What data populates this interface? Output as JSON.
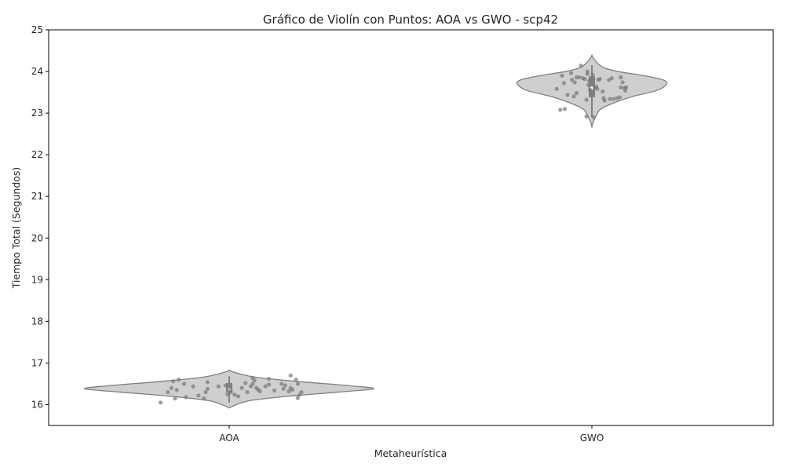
{
  "chart_data": {
    "type": "violin",
    "title": "Gráfico de Violín con Puntos: AOA vs GWO - scp42",
    "xlabel": "Metaheurística",
    "ylabel": "Tiempo Total (Segundos)",
    "categories": [
      "AOA",
      "GWO"
    ],
    "ylim": [
      15.5,
      25
    ],
    "yticks": [
      16,
      17,
      18,
      19,
      20,
      21,
      22,
      23,
      24,
      25
    ],
    "grid": false,
    "legend": "none",
    "colors": {
      "violin_fill": "#cfcfcf",
      "violin_edge": "#808080",
      "point": "#7a7a7a",
      "box": "#808080"
    },
    "violins": [
      {
        "category": "AOA",
        "min": 15.92,
        "max": 16.82,
        "median": 16.38,
        "q1": 16.3,
        "q3": 16.52,
        "whisker_low": 16.05,
        "whisker_high": 16.68,
        "profile": [
          [
            15.92,
            0.0
          ],
          [
            16.0,
            0.05
          ],
          [
            16.1,
            0.15
          ],
          [
            16.2,
            0.4
          ],
          [
            16.3,
            0.75
          ],
          [
            16.38,
            1.0
          ],
          [
            16.45,
            0.85
          ],
          [
            16.55,
            0.5
          ],
          [
            16.65,
            0.2
          ],
          [
            16.75,
            0.06
          ],
          [
            16.82,
            0.0
          ]
        ],
        "points": [
          [
            -0.38,
            16.05
          ],
          [
            -0.34,
            16.3
          ],
          [
            -0.32,
            16.4
          ],
          [
            -0.31,
            16.56
          ],
          [
            -0.3,
            16.15
          ],
          [
            -0.29,
            16.35
          ],
          [
            -0.28,
            16.6
          ],
          [
            -0.25,
            16.5
          ],
          [
            -0.24,
            16.18
          ],
          [
            -0.2,
            16.44
          ],
          [
            -0.17,
            16.22
          ],
          [
            -0.14,
            16.15
          ],
          [
            -0.13,
            16.3
          ],
          [
            -0.12,
            16.54
          ],
          [
            -0.12,
            16.38
          ],
          [
            -0.06,
            16.44
          ],
          [
            -0.02,
            16.46
          ],
          [
            -0.01,
            16.25
          ],
          [
            0.0,
            16.4
          ],
          [
            0.01,
            16.3
          ],
          [
            0.03,
            16.24
          ],
          [
            0.05,
            16.2
          ],
          [
            0.07,
            16.4
          ],
          [
            0.09,
            16.52
          ],
          [
            0.1,
            16.3
          ],
          [
            0.12,
            16.44
          ],
          [
            0.13,
            16.64
          ],
          [
            0.13,
            16.5
          ],
          [
            0.14,
            16.58
          ],
          [
            0.15,
            16.4
          ],
          [
            0.16,
            16.36
          ],
          [
            0.17,
            16.32
          ],
          [
            0.2,
            16.44
          ],
          [
            0.22,
            16.48
          ],
          [
            0.22,
            16.62
          ],
          [
            0.25,
            16.34
          ],
          [
            0.29,
            16.5
          ],
          [
            0.3,
            16.38
          ],
          [
            0.31,
            16.46
          ],
          [
            0.33,
            16.32
          ],
          [
            0.34,
            16.7
          ],
          [
            0.34,
            16.4
          ],
          [
            0.35,
            16.36
          ],
          [
            0.37,
            16.6
          ],
          [
            0.38,
            16.5
          ],
          [
            0.38,
            16.16
          ],
          [
            0.39,
            16.24
          ],
          [
            0.4,
            16.3
          ]
        ]
      },
      {
        "category": "GWO",
        "min": 22.67,
        "max": 24.38,
        "median": 23.6,
        "q1": 23.38,
        "q3": 23.88,
        "whisker_low": 22.9,
        "whisker_high": 24.15,
        "profile": [
          [
            22.67,
            0.0
          ],
          [
            22.8,
            0.02
          ],
          [
            22.95,
            0.06
          ],
          [
            23.1,
            0.12
          ],
          [
            23.25,
            0.3
          ],
          [
            23.4,
            0.55
          ],
          [
            23.55,
            0.88
          ],
          [
            23.7,
            1.0
          ],
          [
            23.8,
            0.95
          ],
          [
            23.9,
            0.7
          ],
          [
            24.0,
            0.35
          ],
          [
            24.1,
            0.15
          ],
          [
            24.25,
            0.05
          ],
          [
            24.38,
            0.0
          ]
        ],
        "points": [
          [
            -0.39,
            23.58
          ],
          [
            -0.35,
            23.08
          ],
          [
            -0.33,
            23.9
          ],
          [
            -0.31,
            23.72
          ],
          [
            -0.3,
            23.1
          ],
          [
            -0.27,
            23.44
          ],
          [
            -0.23,
            23.96
          ],
          [
            -0.22,
            23.8
          ],
          [
            -0.2,
            23.4
          ],
          [
            -0.19,
            23.74
          ],
          [
            -0.17,
            23.86
          ],
          [
            -0.17,
            23.48
          ],
          [
            -0.14,
            23.86
          ],
          [
            -0.12,
            24.14
          ],
          [
            -0.1,
            23.84
          ],
          [
            -0.08,
            23.82
          ],
          [
            -0.06,
            23.32
          ],
          [
            -0.06,
            22.92
          ],
          [
            -0.05,
            23.94
          ],
          [
            -0.05,
            24.0
          ],
          [
            -0.04,
            23.68
          ],
          [
            -0.03,
            23.78
          ],
          [
            -0.02,
            23.56
          ],
          [
            0.0,
            23.8
          ],
          [
            0.01,
            23.92
          ],
          [
            0.02,
            22.9
          ],
          [
            0.03,
            23.6
          ],
          [
            0.05,
            23.64
          ],
          [
            0.06,
            23.58
          ],
          [
            0.07,
            23.8
          ],
          [
            0.09,
            23.82
          ],
          [
            0.12,
            23.52
          ],
          [
            0.13,
            23.36
          ],
          [
            0.14,
            23.3
          ],
          [
            0.19,
            23.8
          ],
          [
            0.2,
            23.34
          ],
          [
            0.22,
            23.84
          ],
          [
            0.24,
            23.34
          ],
          [
            0.28,
            23.36
          ],
          [
            0.31,
            23.38
          ],
          [
            0.32,
            23.62
          ],
          [
            0.32,
            23.86
          ],
          [
            0.34,
            23.74
          ],
          [
            0.36,
            23.6
          ],
          [
            0.37,
            23.54
          ],
          [
            0.38,
            23.62
          ]
        ]
      }
    ]
  }
}
